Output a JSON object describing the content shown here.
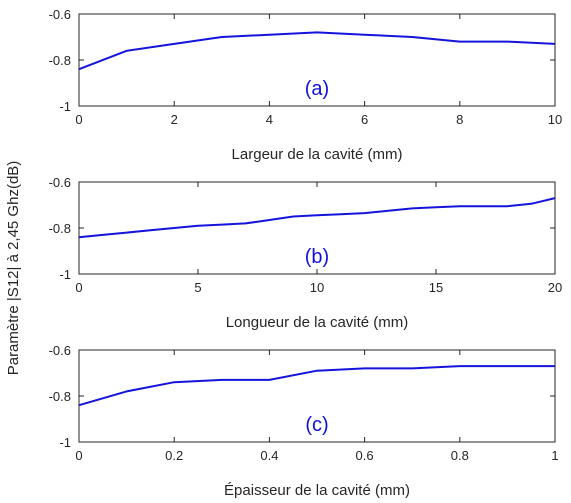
{
  "ylabel": "Paramètre |S12| à 2,45 Ghz(dB)",
  "colors": {
    "line": "#1414dc",
    "axis": "#262626",
    "panel_label": "#1010e0",
    "background": "#ffffff"
  },
  "chart_data": [
    {
      "type": "line",
      "panel_label": "(a)",
      "xlabel": "Largeur de la cavité (mm)",
      "xlim": [
        0,
        10
      ],
      "ylim": [
        -1,
        -0.6
      ],
      "xticks": [
        0,
        2,
        4,
        6,
        8,
        10
      ],
      "xtick_labels": [
        "0",
        "2",
        "4",
        "6",
        "8",
        "10"
      ],
      "yticks": [
        -0.6,
        -0.8,
        -1
      ],
      "ytick_labels": [
        "-0.6",
        "-0.8",
        "-1"
      ],
      "grid": false,
      "series": [
        {
          "x": [
            0,
            1,
            2,
            3,
            4,
            5,
            6,
            7,
            8,
            9,
            10
          ],
          "y": [
            -0.84,
            -0.76,
            -0.73,
            -0.7,
            -0.69,
            -0.68,
            -0.69,
            -0.7,
            -0.72,
            -0.72,
            -0.73
          ]
        }
      ]
    },
    {
      "type": "line",
      "panel_label": "(b)",
      "xlabel": "Longueur de la cavité (mm)",
      "xlim": [
        0,
        20
      ],
      "ylim": [
        -1,
        -0.6
      ],
      "xticks": [
        0,
        5,
        10,
        15,
        20
      ],
      "xtick_labels": [
        "0",
        "5",
        "10",
        "15",
        "20"
      ],
      "yticks": [
        -0.6,
        -0.8,
        -1
      ],
      "ytick_labels": [
        "-0.6",
        "-0.8",
        "-1"
      ],
      "grid": false,
      "series": [
        {
          "x": [
            0,
            1,
            2,
            3,
            4,
            5,
            6,
            7,
            8,
            9,
            10,
            11,
            12,
            13,
            14,
            15,
            16,
            17,
            18,
            19,
            20
          ],
          "y": [
            -0.84,
            -0.83,
            -0.82,
            -0.81,
            -0.8,
            -0.79,
            -0.785,
            -0.78,
            -0.765,
            -0.75,
            -0.745,
            -0.74,
            -0.735,
            -0.725,
            -0.715,
            -0.71,
            -0.705,
            -0.705,
            -0.705,
            -0.695,
            -0.67
          ]
        }
      ]
    },
    {
      "type": "line",
      "panel_label": "(c)",
      "xlabel": "Épaisseur de la cavité (mm)",
      "xlim": [
        0,
        1
      ],
      "ylim": [
        -1,
        -0.6
      ],
      "xticks": [
        0,
        0.2,
        0.4,
        0.6,
        0.8,
        1
      ],
      "xtick_labels": [
        "0",
        "0.2",
        "0.4",
        "0.6",
        "0.8",
        "1"
      ],
      "yticks": [
        -0.6,
        -0.8,
        -1
      ],
      "ytick_labels": [
        "-0.6",
        "-0.8",
        "-1"
      ],
      "grid": false,
      "series": [
        {
          "x": [
            0,
            0.1,
            0.2,
            0.3,
            0.4,
            0.5,
            0.6,
            0.7,
            0.8,
            0.9,
            1.0
          ],
          "y": [
            -0.84,
            -0.78,
            -0.74,
            -0.73,
            -0.73,
            -0.69,
            -0.68,
            -0.68,
            -0.67,
            -0.67,
            -0.67
          ]
        }
      ]
    }
  ]
}
